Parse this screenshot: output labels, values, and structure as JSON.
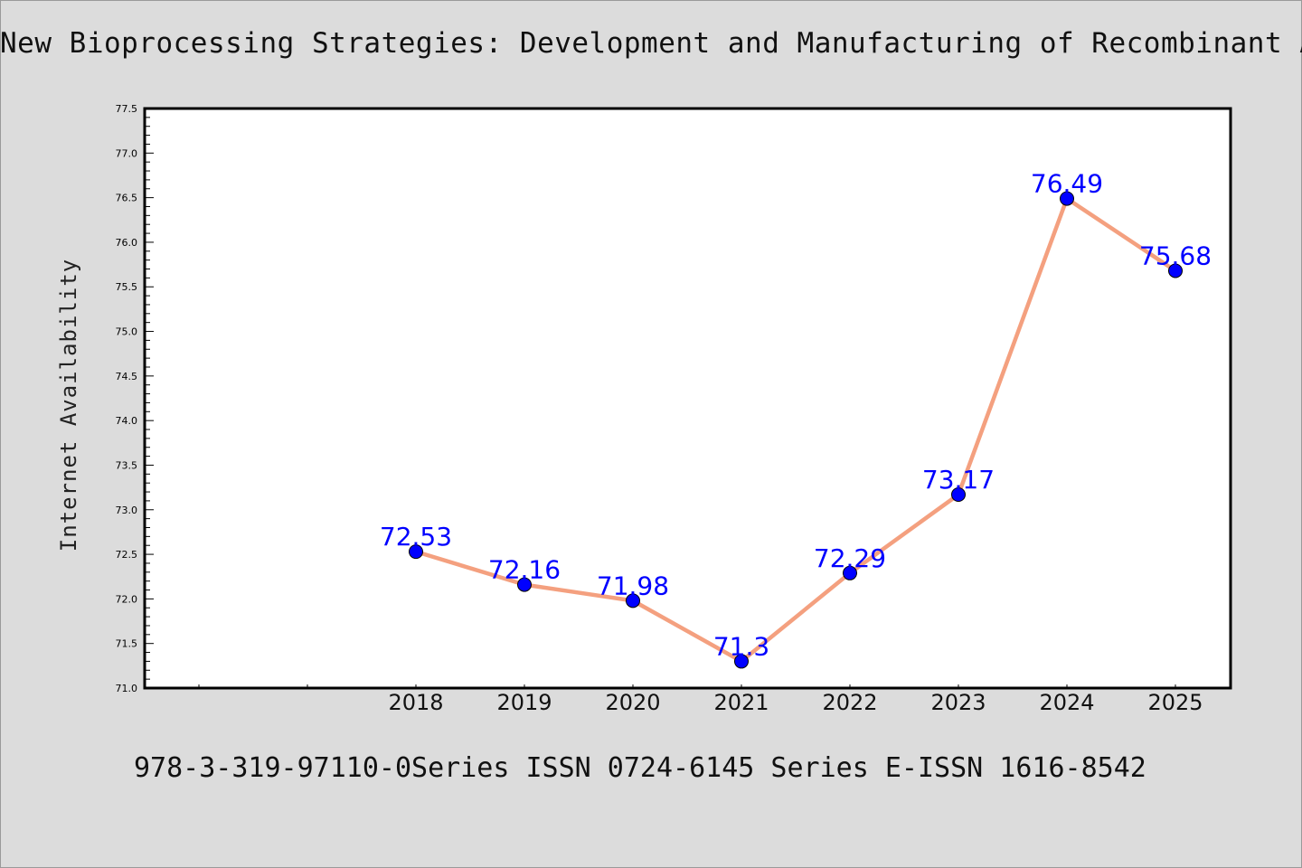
{
  "header": {
    "title": "New Bioprocessing Strategies: Development and Manufacturing of Recombinant Antib"
  },
  "footer": {
    "text": "978-3-319-97110-0Series ISSN 0724-6145 Series E-ISSN 1616-8542"
  },
  "colors": {
    "background": "#dcdcdc",
    "plot_background": "#ffffff",
    "line": "#f4a07f",
    "marker": "#0000ff",
    "data_label": "#0000ff"
  },
  "chart_data": {
    "type": "line",
    "title": "New Bioprocessing Strategies: Development and Manufacturing of Recombinant Antib",
    "xlabel": "",
    "ylabel": "Internet Availability",
    "categories": [
      "2018",
      "2019",
      "2020",
      "2021",
      "2022",
      "2023",
      "2024",
      "2025"
    ],
    "series": [
      {
        "values": [
          72.53,
          72.16,
          71.98,
          71.3,
          72.29,
          73.17,
          76.49,
          75.68
        ]
      }
    ],
    "data_labels": [
      "72.53",
      "72.16",
      "71.98",
      "71.3",
      "72.29",
      "73.17",
      "76.49",
      "75.68"
    ],
    "ylim": [
      71.0,
      77.5
    ],
    "y_ticks": [
      "71.0",
      "71.5",
      "72.0",
      "72.5",
      "73.0",
      "73.5",
      "74.0",
      "74.5",
      "75.0",
      "75.5",
      "76.0",
      "76.5",
      "77.0",
      "77.5"
    ],
    "grid": false,
    "legend": "none"
  }
}
